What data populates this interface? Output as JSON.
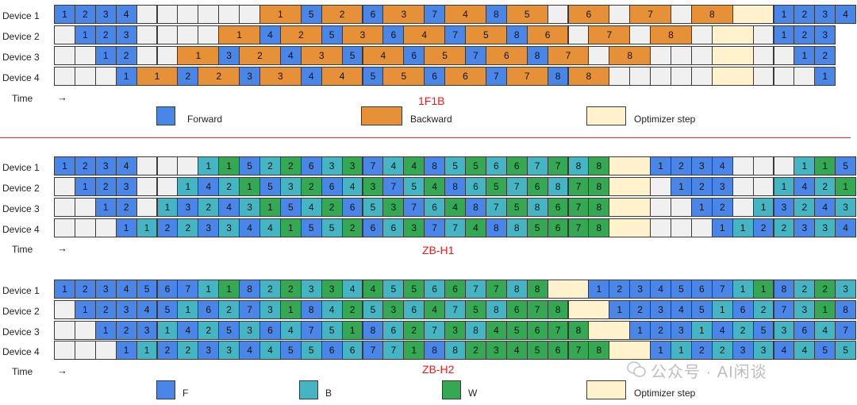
{
  "devices": [
    "Device 1",
    "Device 2",
    "Device 3",
    "Device 4"
  ],
  "time_label": "Time",
  "time_arrow": "→",
  "colors": {
    "forward": "#4a86e8",
    "backward": "#e69138",
    "b": "#45b5c4",
    "w": "#34a853",
    "empty": "#f0f0f0",
    "optimizer": "#fff2cc"
  },
  "sections": [
    {
      "title": "1F1B",
      "rows": [
        "F1 F2 F3 F4 _ _ _ _ _ _ B1 B1 F5 B2 B2 F6 B3 B3 F7 B4 B4 F8 B5 B5 _ B6 B6 _ B7 B7 _ B8 B8 O O F1 F2 F3 F4",
        "_ F1 F2 F3 _ _ _ _ B1 B1 F4 B2 B2 F5 B3 B3 F6 B4 B4 F7 B5 B5 F8 B6 B6 _ B7 B7 _ B8 B8 _ O O _ F1 F2 F3",
        "_ _ F1 F2 _ _ B1 B1 F3 B2 B2 F4 B3 B3 F5 B4 B4 F6 B5 B5 F7 B6 B6 F8 B7 B7 _ B8 B8 _ _ _ O O _ _ F1 F2",
        "_ _ _ F1 B1 B1 F2 B2 B2 F3 B3 B3 F4 B4 B4 F5 B5 B5 F6 B6 B6 F7 B7 B7 F8 B8 B8 _ _ _ _ _ O O _ _ _ F1"
      ]
    },
    {
      "title": "ZB-H1",
      "rows": [
        "F1 F2 F3 F4 _ _ _ B1 W1 F5 B2 W2 F6 B3 W3 F7 B4 W4 F8 B5 W5 B6 W6 B7 W7 B8 W8 O O F1 F2 F3 F4 _ _ _ B1 W1 F5",
        "_ F1 F2 F3 _ _ B1 F4 B2 W1 F5 B3 W2 F6 B4 W3 F7 B5 W4 F8 B6 W5 B7 W6 B8 W7 W8 O O _ F1 F2 F3 _ _ B1 F4 B2 W1",
        "_ _ F1 F2 _ B1 F3 B2 F4 B3 W1 F5 B4 W2 F6 B5 W3 F7 B6 W4 F8 B7 W5 B8 W6 W7 W8 O O _ _ F1 F2 _ B1 F3 B2 F4 B3",
        "_ _ _ F1 B1 F2 B2 F3 B3 F4 B4 W1 F5 B5 W2 F6 B6 W3 F7 B7 W4 F8 B8 W5 W6 W7 W8 O O _ _ _ F1 B1 F2 B2 F3 B3 F4"
      ]
    },
    {
      "title": "ZB-H2",
      "rows": [
        "F1 F2 F3 F4 F5 F6 F7 B1 W1 F8 B2 W2 B3 W3 B4 W4 B5 W5 B6 W6 B7 W7 B8 W8 O O F1 F2 F3 F4 F5 F6 F7 B1 W1 F8 B2 W2 B3",
        "_ F1 F2 F3 F4 F5 B1 F6 B2 F7 B3 W1 F8 B4 W2 B5 W3 B6 W4 B7 W5 B8 W6 W7 W8 O O F1 F2 F3 F4 F5 B1 F6 B2 F7 B3 W1 F8",
        "_ _ F1 F2 F3 B1 F4 B2 F5 B3 F6 B4 F7 B5 W1 F8 B6 W2 B7 W3 B8 W4 W5 W6 W7 W8 O O F1 F2 F3 B1 F4 B2 F5 B3 F6 B4 F7",
        "_ _ _ F1 B1 F2 B2 F3 B3 F4 B4 F5 B5 F6 B6 F7 B7 W1 F8 B8 W2 W3 W4 W5 W6 W7 W8 O O F1 B1 F2 B2 F3 B3 F4 B4 F5 B5"
      ]
    }
  ],
  "legend1": {
    "forward": "Forward",
    "backward": "Backward",
    "optimizer": "Optimizer step"
  },
  "legend2": {
    "f": "F",
    "b": "B",
    "w": "W",
    "optimizer": "Optimizer step"
  },
  "watermark": "公众号 · AI闲谈"
}
